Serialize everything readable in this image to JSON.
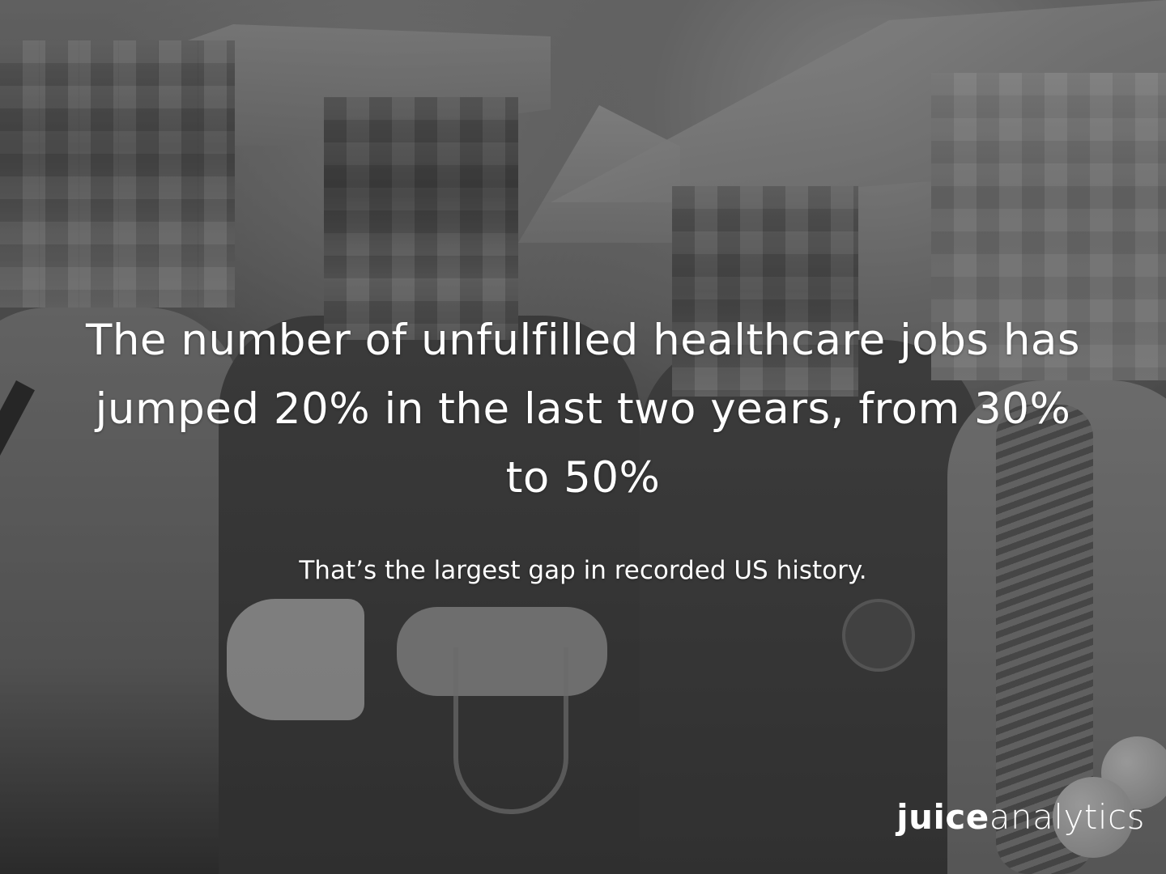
{
  "headline": "The number of unfulfilled healthcare jobs has jumped 20% in the last two years, from 30% to 50%",
  "subheadline": "That’s the largest gap in recorded US history.",
  "logo": {
    "bold_part": "juice",
    "light_part": "analytics"
  },
  "colors": {
    "text": "#ffffff"
  }
}
